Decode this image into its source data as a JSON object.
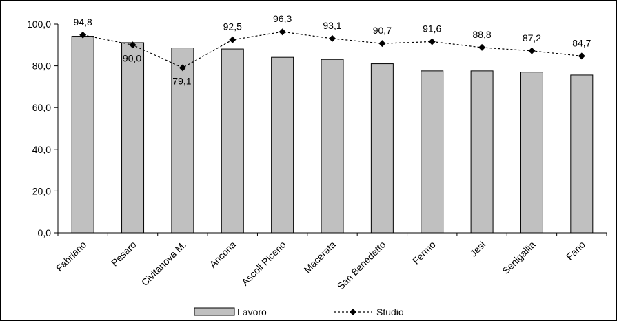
{
  "chart_data": {
    "type": "bar",
    "categories": [
      "Fabriano",
      "Pesaro",
      "Civitanova M.",
      "Ancona",
      "Ascoli Piceno",
      "Macerata",
      "San Benedetto",
      "Fermo",
      "Jesi",
      "Senigallia",
      "Fano"
    ],
    "series": [
      {
        "name": "Lavoro",
        "type": "bar",
        "color": "#c0c0c0",
        "values": [
          94.2,
          91.1,
          88.6,
          88.1,
          84.1,
          83.1,
          81.0,
          77.6,
          77.6,
          77.0,
          75.6
        ]
      },
      {
        "name": "Studio",
        "type": "line",
        "color": "#000000",
        "values": [
          94.8,
          90.0,
          79.1,
          92.5,
          96.3,
          93.1,
          90.7,
          91.6,
          88.8,
          87.2,
          84.7
        ],
        "labels": [
          "94,8",
          "90,0",
          "79,1",
          "92,5",
          "96,3",
          "93,1",
          "90,7",
          "91,6",
          "88,8",
          "87,2",
          "84,7"
        ]
      }
    ],
    "y_ticks": [
      "0,0",
      "20,0",
      "40,0",
      "60,0",
      "80,0",
      "100,0"
    ],
    "ylim": [
      0,
      100
    ],
    "legend_position": "bottom",
    "grid": false
  }
}
